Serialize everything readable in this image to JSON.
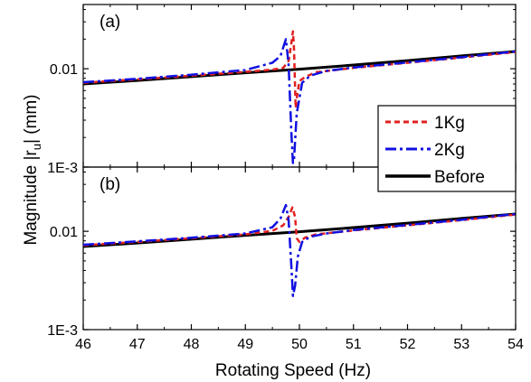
{
  "chart_data": {
    "type": "line",
    "x_axis": {
      "label": "Rotating Speed (Hz)",
      "range": [
        46,
        54
      ],
      "ticks": [
        46,
        47,
        48,
        49,
        50,
        51,
        52,
        53,
        54
      ],
      "tick_labels": [
        "46",
        "47",
        "48",
        "49",
        "50",
        "51",
        "52",
        "53",
        "54"
      ]
    },
    "y_axis": {
      "label_main": "Magnitude |r",
      "label_sub": "u",
      "label_end": "| (mm)",
      "scale": "log",
      "range": [
        0.001,
        0.045
      ],
      "tick_labels": [
        {
          "value": 0.01,
          "label": "0.01"
        },
        {
          "value": 0.001,
          "label": "1E-3"
        }
      ]
    },
    "legend": {
      "placement": "right",
      "entries": [
        {
          "name": "1Kg",
          "color": "#e02020",
          "style": "dash"
        },
        {
          "name": "2Kg",
          "color": "#1010e0",
          "style": "dashdot"
        },
        {
          "name": "Before",
          "color": "#000000",
          "style": "solid"
        }
      ]
    },
    "panels": [
      {
        "label": "(a)",
        "series": [
          {
            "name": "1Kg",
            "color": "#e02020",
            "style": "dash",
            "points": [
              [
                46,
                0.0072
              ],
              [
                47,
                0.0078
              ],
              [
                48,
                0.0085
              ],
              [
                49,
                0.0093
              ],
              [
                49.5,
                0.0098
              ],
              [
                49.7,
                0.0102
              ],
              [
                49.8,
                0.012
              ],
              [
                49.85,
                0.018
              ],
              [
                49.88,
                0.024
              ],
              [
                49.9,
                0.016
              ],
              [
                49.93,
                0.004
              ],
              [
                49.95,
                0.005
              ],
              [
                50.0,
                0.0075
              ],
              [
                50.1,
                0.0082
              ],
              [
                50.3,
                0.0092
              ],
              [
                51,
                0.0102
              ],
              [
                52,
                0.0115
              ],
              [
                53,
                0.013
              ],
              [
                54,
                0.0148
              ]
            ]
          },
          {
            "name": "2Kg",
            "color": "#1010e0",
            "style": "dashdot",
            "points": [
              [
                46,
                0.0073
              ],
              [
                47,
                0.0079
              ],
              [
                48,
                0.0087
              ],
              [
                49,
                0.0097
              ],
              [
                49.5,
                0.0115
              ],
              [
                49.65,
                0.0135
              ],
              [
                49.75,
                0.02
              ],
              [
                49.8,
                0.011
              ],
              [
                49.85,
                0.0023
              ],
              [
                49.88,
                0.0011
              ],
              [
                49.9,
                0.0012
              ],
              [
                49.95,
                0.0035
              ],
              [
                50.05,
                0.0072
              ],
              [
                50.2,
                0.0085
              ],
              [
                50.5,
                0.0095
              ],
              [
                51,
                0.0103
              ],
              [
                52,
                0.0116
              ],
              [
                53,
                0.0131
              ],
              [
                54,
                0.015
              ]
            ]
          },
          {
            "name": "Before",
            "color": "#000000",
            "style": "solid",
            "points": [
              [
                46,
                0.007
              ],
              [
                47,
                0.0076
              ],
              [
                48,
                0.0083
              ],
              [
                49,
                0.0091
              ],
              [
                50,
                0.0099
              ],
              [
                51,
                0.0109
              ],
              [
                52,
                0.0121
              ],
              [
                53,
                0.0135
              ],
              [
                54,
                0.015
              ]
            ]
          }
        ]
      },
      {
        "label": "(b)",
        "series": [
          {
            "name": "1Kg",
            "color": "#e02020",
            "style": "dash",
            "points": [
              [
                46,
                0.0072
              ],
              [
                47,
                0.0078
              ],
              [
                48,
                0.0085
              ],
              [
                49,
                0.0093
              ],
              [
                49.5,
                0.0101
              ],
              [
                49.7,
                0.0115
              ],
              [
                49.8,
                0.014
              ],
              [
                49.87,
                0.0175
              ],
              [
                49.92,
                0.014
              ],
              [
                49.95,
                0.0085
              ],
              [
                50.0,
                0.0078
              ],
              [
                50.1,
                0.0086
              ],
              [
                50.3,
                0.0093
              ],
              [
                51,
                0.0102
              ],
              [
                52,
                0.0115
              ],
              [
                53,
                0.013
              ],
              [
                54,
                0.0148
              ]
            ]
          },
          {
            "name": "2Kg",
            "color": "#1010e0",
            "style": "dashdot",
            "points": [
              [
                46,
                0.0073
              ],
              [
                47,
                0.0079
              ],
              [
                48,
                0.0086
              ],
              [
                49,
                0.0095
              ],
              [
                49.5,
                0.011
              ],
              [
                49.65,
                0.0135
              ],
              [
                49.75,
                0.0185
              ],
              [
                49.8,
                0.013
              ],
              [
                49.85,
                0.0045
              ],
              [
                49.88,
                0.0022
              ],
              [
                49.92,
                0.0028
              ],
              [
                49.97,
                0.0055
              ],
              [
                50.05,
                0.0078
              ],
              [
                50.2,
                0.0088
              ],
              [
                50.5,
                0.0095
              ],
              [
                51,
                0.0103
              ],
              [
                52,
                0.0116
              ],
              [
                53,
                0.0131
              ],
              [
                54,
                0.015
              ]
            ]
          },
          {
            "name": "Before",
            "color": "#000000",
            "style": "solid",
            "points": [
              [
                46,
                0.007
              ],
              [
                47,
                0.0076
              ],
              [
                48,
                0.0083
              ],
              [
                49,
                0.0091
              ],
              [
                50,
                0.0099
              ],
              [
                51,
                0.0109
              ],
              [
                52,
                0.0121
              ],
              [
                53,
                0.0135
              ],
              [
                54,
                0.015
              ]
            ]
          }
        ]
      }
    ]
  }
}
